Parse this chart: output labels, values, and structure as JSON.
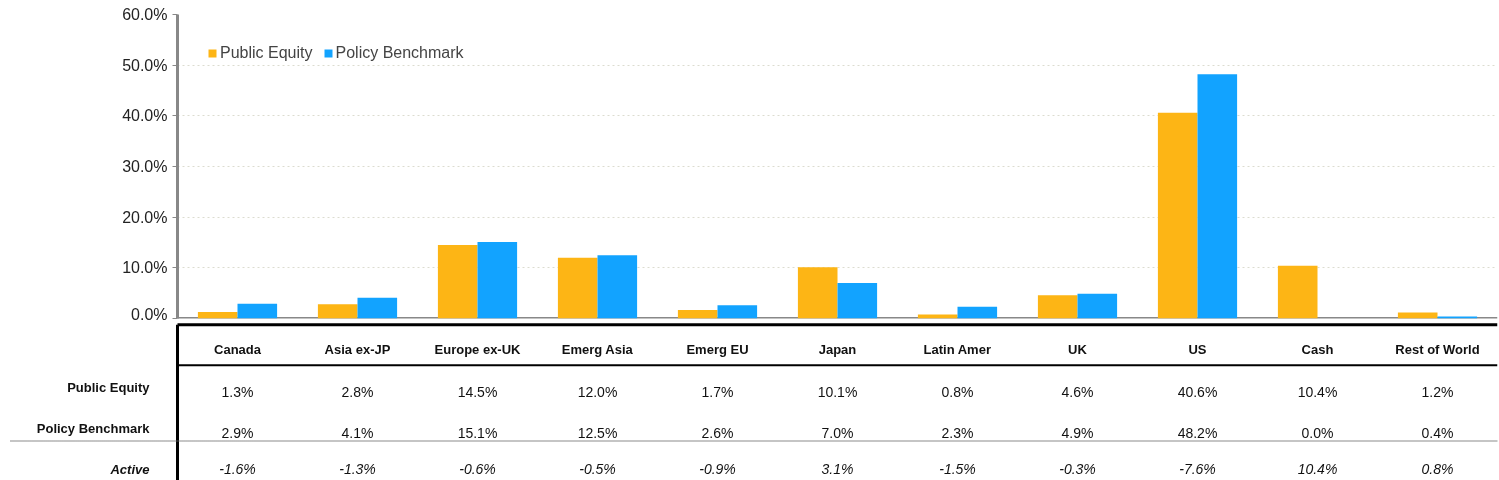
{
  "chart_data": {
    "type": "bar",
    "categories": [
      "Canada",
      "Asia ex-JP",
      "Europe ex-UK",
      "Emerg Asia",
      "Emerg EU",
      "Japan",
      "Latin Amer",
      "UK",
      "US",
      "Cash",
      "Rest of World"
    ],
    "series": [
      {
        "name": "Public Equity",
        "color": "#fdb515",
        "values": [
          1.3,
          2.8,
          14.5,
          12.0,
          1.7,
          10.1,
          0.8,
          4.6,
          40.6,
          10.4,
          1.2
        ],
        "value_labels": [
          "1.3%",
          "2.8%",
          "14.5%",
          "12.0%",
          "1.7%",
          "10.1%",
          "0.8%",
          "4.6%",
          "40.6%",
          "10.4%",
          "1.2%"
        ]
      },
      {
        "name": "Policy Benchmark",
        "color": "#12a3ff",
        "values": [
          2.9,
          4.1,
          15.1,
          12.5,
          2.6,
          7.0,
          2.3,
          4.9,
          48.2,
          0.0,
          0.4
        ],
        "value_labels": [
          "2.9%",
          "4.1%",
          "15.1%",
          "12.5%",
          "2.6%",
          "7.0%",
          "2.3%",
          "4.9%",
          "48.2%",
          "0.0%",
          "0.4%"
        ]
      }
    ],
    "annotations": [
      "Active",
      "-1.6%",
      "-1.3%",
      "-0.6%",
      "-0.5%",
      "-0.9%",
      "3.1%",
      "-1.5%",
      "-0.3%",
      "-7.6%",
      "10.4%",
      "0.8%"
    ],
    "ylim": [
      0,
      60
    ],
    "yticks": [
      {
        "value": 0,
        "label": "0.0%"
      },
      {
        "value": 10,
        "label": "10.0%"
      },
      {
        "value": 20,
        "label": "20.0%"
      },
      {
        "value": 30,
        "label": "30.0%"
      },
      {
        "value": 40,
        "label": "40.0%"
      },
      {
        "value": 50,
        "label": "50.0%"
      },
      {
        "value": 60,
        "label": "60.0%"
      }
    ],
    "grid": "y",
    "legend": "top left",
    "data_labels": true
  }
}
